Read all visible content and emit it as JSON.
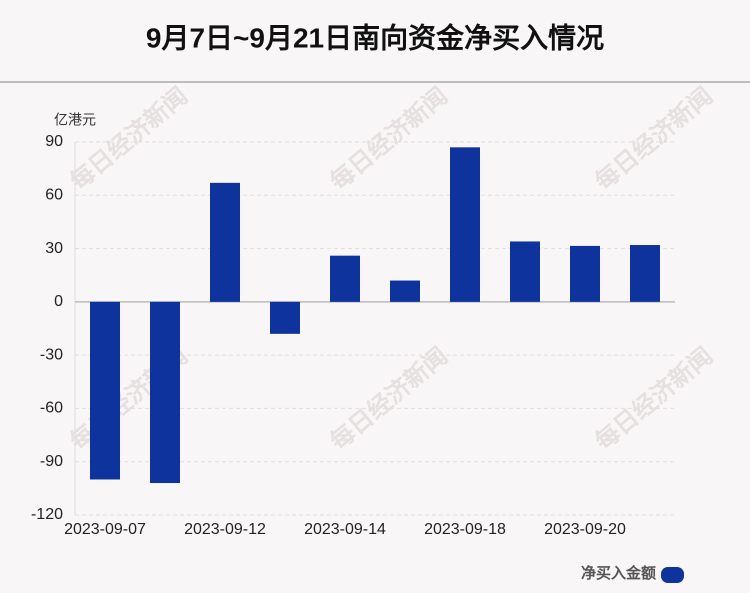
{
  "chart_data": {
    "type": "bar",
    "title": "9月7日~9月21日南向资金净买入情况",
    "y_label": "亿港元",
    "watermark": "每日经济新闻",
    "categories": [
      "2023-09-07",
      null,
      "2023-09-12",
      null,
      "2023-09-14",
      null,
      "2023-09-18",
      null,
      "2023-09-20",
      null
    ],
    "series": [
      {
        "name": "净买入金额",
        "color": "#0f339c",
        "values": [
          -100,
          -102,
          67,
          -18,
          26,
          12,
          87,
          34,
          31.5,
          32
        ]
      }
    ],
    "ylim": [
      -120,
      90
    ],
    "yticks": [
      -120,
      -90,
      -60,
      -30,
      0,
      30,
      60,
      90
    ],
    "grid": true,
    "legend": "bottom-right"
  }
}
